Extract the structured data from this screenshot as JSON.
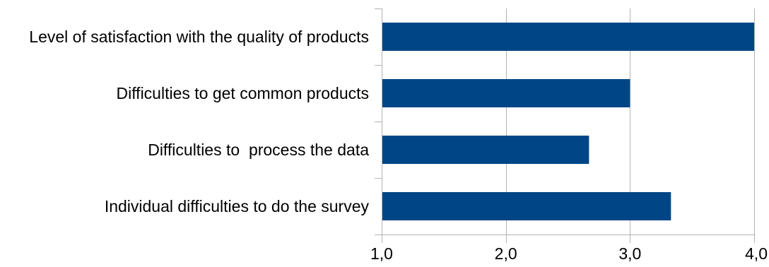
{
  "chart_data": {
    "type": "bar",
    "orientation": "horizontal",
    "categories": [
      "Level of satisfaction with the quality of products",
      "Difficulties to get common products",
      "Difficulties to  process the data",
      "Individual difficulties to do the survey"
    ],
    "values": [
      4.0,
      3.0,
      2.67,
      3.33
    ],
    "xlim": [
      1.0,
      4.0
    ],
    "ticks": [
      1.0,
      2.0,
      3.0,
      4.0
    ],
    "tick_labels": [
      "1,0",
      "2,0",
      "3,0",
      "4,0"
    ],
    "grid": true,
    "legend": "none",
    "bar_color": "#004586",
    "grid_color": "#b3b3b3",
    "axis_color": "#b3b3b3"
  }
}
